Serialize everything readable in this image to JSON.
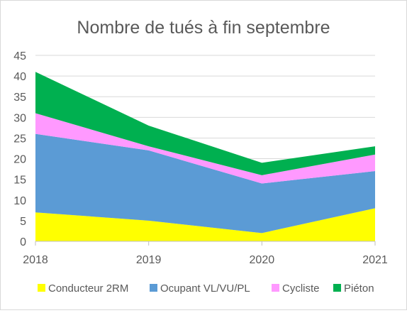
{
  "chart_data": {
    "type": "area",
    "stacked": true,
    "title": "Nombre de tués à fin septembre",
    "x": [
      "2018",
      "2019",
      "2020",
      "2021"
    ],
    "ylim": [
      0,
      45
    ],
    "yticks": [
      "0",
      "5",
      "10",
      "15",
      "20",
      "25",
      "30",
      "35",
      "40",
      "45"
    ],
    "grid": true,
    "legend_position": "bottom",
    "series": [
      {
        "name": "Conducteur 2RM",
        "values": [
          7,
          5,
          2,
          8
        ],
        "color": "#ffff00"
      },
      {
        "name": "Ocupant VL/VU/PL",
        "values": [
          19,
          17,
          12,
          9
        ],
        "color": "#5b9bd5"
      },
      {
        "name": "Cycliste",
        "values": [
          5,
          1,
          2,
          4
        ],
        "color": "#ff99ff"
      },
      {
        "name": "Piéton",
        "values": [
          10,
          5,
          3,
          2
        ],
        "color": "#00b050"
      }
    ]
  }
}
